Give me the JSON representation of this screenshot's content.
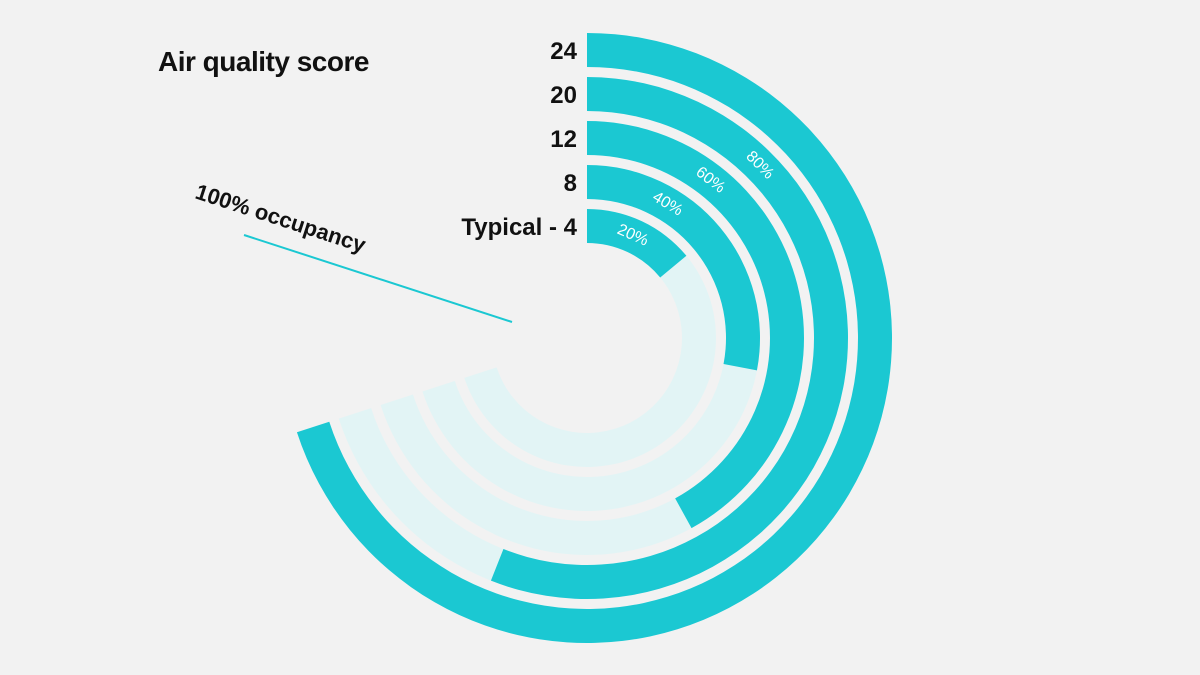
{
  "chart_data": {
    "type": "radial-bar",
    "title": "Air quality score",
    "rings": [
      {
        "label": "Typical - 4",
        "occupancy_pct": 20
      },
      {
        "label": "8",
        "occupancy_pct": 40
      },
      {
        "label": "12",
        "occupancy_pct": 60
      },
      {
        "label": "20",
        "occupancy_pct": 80
      },
      {
        "label": "24",
        "occupancy_pct": 100
      }
    ],
    "tick_labels": [
      "20%",
      "40%",
      "60%",
      "80%"
    ],
    "max_label": "100% occupancy",
    "colors": {
      "fill": "#1bc8d2",
      "track": "#e2f4f5",
      "background": "#f2f2f2",
      "text": "#111111"
    }
  }
}
